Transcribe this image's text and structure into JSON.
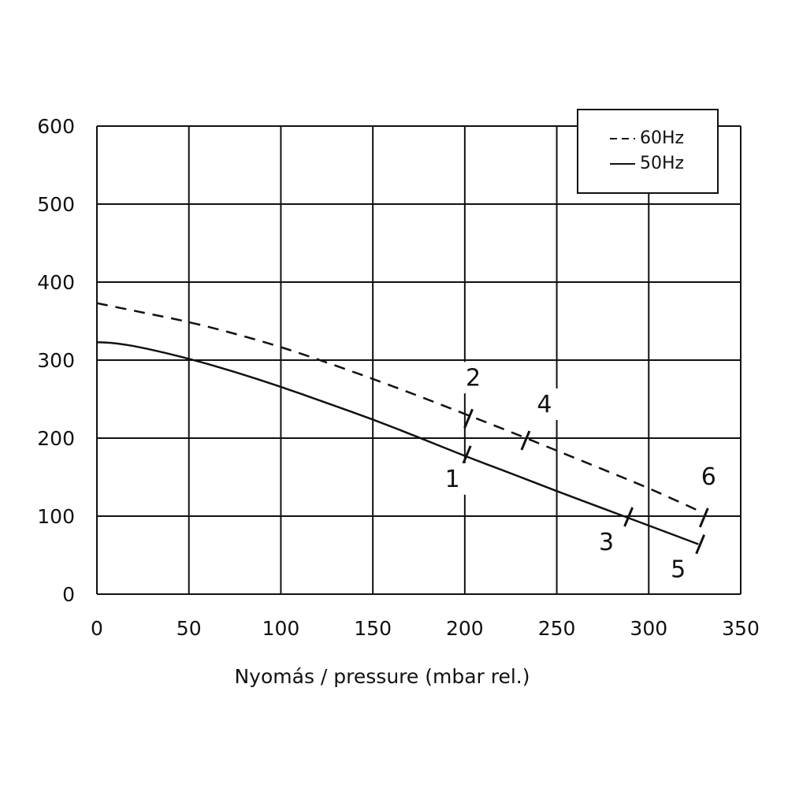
{
  "chart_data": {
    "type": "line",
    "xlabel": "Nyomás   / pressure (mbar rel.)",
    "ylabel": "",
    "xlim": [
      0,
      350
    ],
    "ylim": [
      0,
      600
    ],
    "xticks": [
      0,
      50,
      100,
      150,
      200,
      250,
      300,
      350
    ],
    "yticks": [
      0,
      100,
      200,
      300,
      400,
      500,
      600
    ],
    "grid": true,
    "legend_position": "top-right",
    "series": [
      {
        "name": "60Hz",
        "style": "dashed",
        "color": "#111111",
        "x": [
          0,
          25,
          50,
          75,
          100,
          125,
          150,
          175,
          200,
          225,
          250,
          275,
          300,
          328
        ],
        "y": [
          373,
          361,
          349,
          334,
          317,
          297,
          276,
          254,
          231,
          208,
          184,
          160,
          136,
          106
        ]
      },
      {
        "name": "50Hz",
        "style": "solid",
        "color": "#111111",
        "x": [
          0,
          10,
          25,
          50,
          75,
          100,
          125,
          150,
          175,
          200,
          225,
          250,
          275,
          300,
          327
        ],
        "y": [
          323,
          322,
          316,
          302,
          285,
          266,
          245,
          224,
          201,
          177,
          155,
          132,
          110,
          88,
          64
        ]
      }
    ],
    "markers": [
      {
        "label": "1",
        "series": "50Hz",
        "x": 201,
        "y": 178,
        "label_pos": "below"
      },
      {
        "label": "2",
        "series": "60Hz",
        "x": 202,
        "y": 225,
        "label_pos": "above"
      },
      {
        "label": "3",
        "series": "50Hz",
        "x": 289,
        "y": 99,
        "label_pos": "below-left"
      },
      {
        "label": "4",
        "series": "60Hz",
        "x": 233,
        "y": 197,
        "label_pos": "above-right"
      },
      {
        "label": "5",
        "series": "50Hz",
        "x": 328,
        "y": 64,
        "label_pos": "below-left"
      },
      {
        "label": "6",
        "series": "60Hz",
        "x": 330,
        "y": 98,
        "label_pos": "above"
      }
    ]
  }
}
